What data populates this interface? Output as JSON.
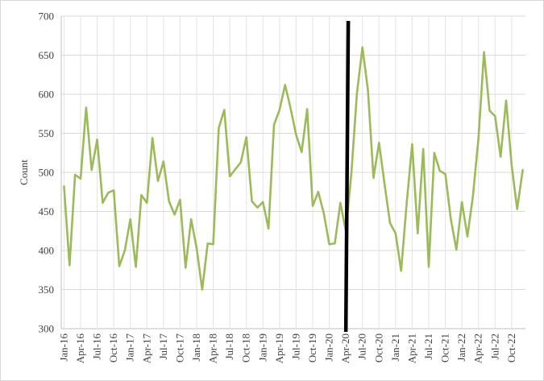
{
  "chart_data": {
    "type": "line",
    "title": "",
    "xlabel": "",
    "ylabel": "Count",
    "ylim": [
      300,
      700
    ],
    "yticks": [
      300,
      350,
      400,
      450,
      500,
      550,
      600,
      650,
      700
    ],
    "grid": true,
    "legend": "none",
    "x_start": "Jan-16",
    "x_tick_labels": [
      "Jan-16",
      "Apr-16",
      "Jul-16",
      "Oct-16",
      "Jan-17",
      "Apr-17",
      "Jul-17",
      "Oct-17",
      "Jan-18",
      "Apr-18",
      "Jul-18",
      "Oct-18",
      "Jan-19",
      "Apr-19",
      "Jul-19",
      "Oct-19",
      "Jan-20",
      "Apr-20",
      "Jul-20",
      "Oct-20",
      "Jan-21",
      "Apr-21",
      "Jul-21",
      "Oct-21",
      "Jan-22",
      "Apr-22",
      "Jul-22",
      "Oct-22"
    ],
    "series": [
      {
        "color": "#9bbb59",
        "values": [
          482,
          381,
          497,
          492,
          583,
          503,
          542,
          461,
          474,
          477,
          380,
          400,
          440,
          379,
          471,
          461,
          544,
          489,
          514,
          463,
          446,
          465,
          378,
          440,
          403,
          350,
          409,
          408,
          557,
          580,
          495,
          504,
          513,
          545,
          463,
          455,
          462,
          428,
          561,
          580,
          612,
          582,
          548,
          526,
          581,
          457,
          475,
          448,
          408,
          409,
          461,
          425,
          499,
          601,
          660,
          605,
          493,
          538,
          485,
          435,
          422,
          374,
          460,
          536,
          422,
          530,
          379,
          525,
          502,
          498,
          440,
          401,
          462,
          418,
          470,
          544,
          654,
          579,
          572,
          520,
          592,
          509,
          453,
          503
        ]
      }
    ],
    "reference_line": {
      "x": "Apr-20",
      "color": "#000000"
    }
  }
}
